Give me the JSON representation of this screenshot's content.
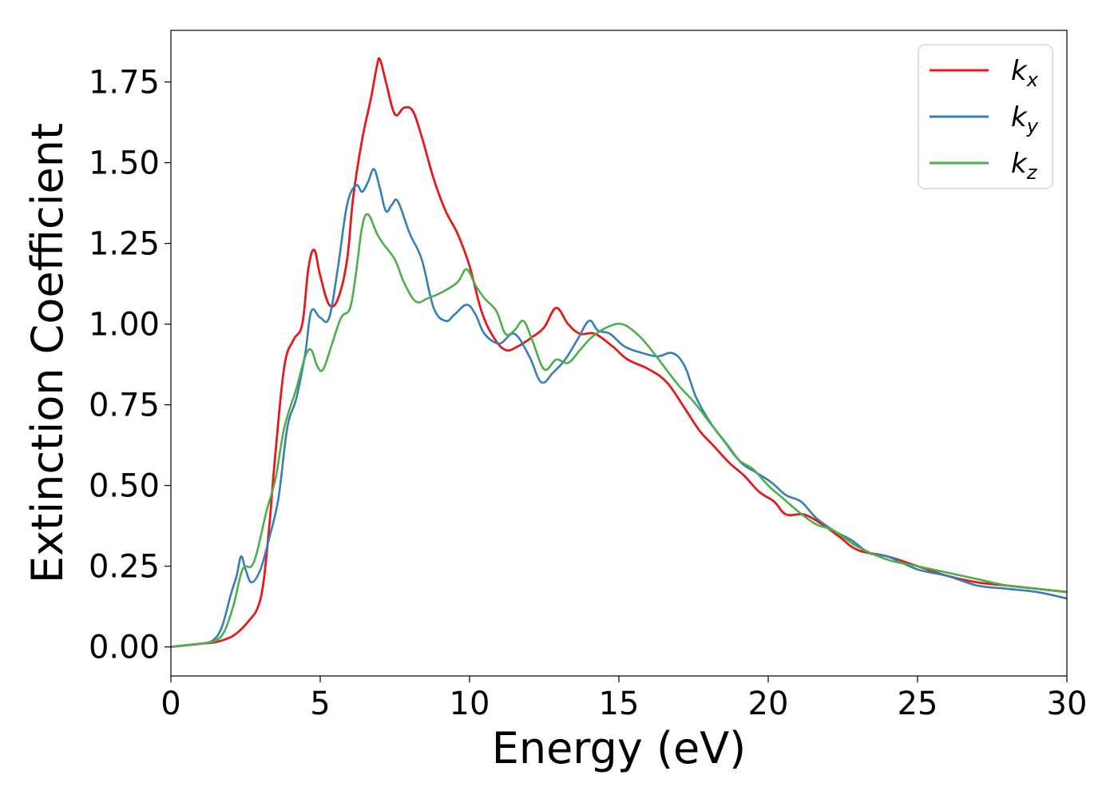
{
  "chart_data": {
    "type": "line",
    "xlabel": "Energy (eV)",
    "ylabel": "Extinction Coefficient",
    "xlim": [
      0,
      30
    ],
    "ylim": [
      -0.09,
      1.91
    ],
    "xticks": [
      0,
      5,
      10,
      15,
      20,
      25,
      30
    ],
    "yticks": [
      0.0,
      0.25,
      0.5,
      0.75,
      1.0,
      1.25,
      1.5,
      1.75
    ],
    "xtick_labels": [
      "0",
      "5",
      "10",
      "15",
      "20",
      "25",
      "30"
    ],
    "ytick_labels": [
      "0.00",
      "0.25",
      "0.50",
      "0.75",
      "1.00",
      "1.25",
      "1.50",
      "1.75"
    ],
    "grid": false,
    "legend_position": "top-right",
    "series": [
      {
        "name": "k_x",
        "legend_base": "k",
        "legend_sub": "x",
        "color": "#e41a1c",
        "points": [
          [
            0,
            0.0
          ],
          [
            0.5,
            0.005
          ],
          [
            1.0,
            0.01
          ],
          [
            1.5,
            0.015
          ],
          [
            2.0,
            0.03
          ],
          [
            2.3,
            0.05
          ],
          [
            2.6,
            0.08
          ],
          [
            2.9,
            0.12
          ],
          [
            3.1,
            0.2
          ],
          [
            3.3,
            0.38
          ],
          [
            3.5,
            0.6
          ],
          [
            3.8,
            0.87
          ],
          [
            4.1,
            0.95
          ],
          [
            4.4,
            1.0
          ],
          [
            4.6,
            1.17
          ],
          [
            4.8,
            1.23
          ],
          [
            5.0,
            1.15
          ],
          [
            5.3,
            1.06
          ],
          [
            5.6,
            1.08
          ],
          [
            5.9,
            1.2
          ],
          [
            6.1,
            1.39
          ],
          [
            6.4,
            1.57
          ],
          [
            6.7,
            1.7
          ],
          [
            6.9,
            1.8
          ],
          [
            7.0,
            1.82
          ],
          [
            7.2,
            1.75
          ],
          [
            7.5,
            1.65
          ],
          [
            7.8,
            1.67
          ],
          [
            8.1,
            1.66
          ],
          [
            8.4,
            1.58
          ],
          [
            8.8,
            1.45
          ],
          [
            9.2,
            1.35
          ],
          [
            9.6,
            1.28
          ],
          [
            10.0,
            1.18
          ],
          [
            10.4,
            1.04
          ],
          [
            10.8,
            0.96
          ],
          [
            11.2,
            0.92
          ],
          [
            11.6,
            0.93
          ],
          [
            12.1,
            0.96
          ],
          [
            12.5,
            0.99
          ],
          [
            12.9,
            1.05
          ],
          [
            13.3,
            1.0
          ],
          [
            13.7,
            0.97
          ],
          [
            14.2,
            0.97
          ],
          [
            14.8,
            0.93
          ],
          [
            15.3,
            0.89
          ],
          [
            16.0,
            0.86
          ],
          [
            16.6,
            0.82
          ],
          [
            17.2,
            0.74
          ],
          [
            17.7,
            0.67
          ],
          [
            18.2,
            0.62
          ],
          [
            18.7,
            0.57
          ],
          [
            19.2,
            0.53
          ],
          [
            19.7,
            0.48
          ],
          [
            20.2,
            0.45
          ],
          [
            20.6,
            0.41
          ],
          [
            21.2,
            0.41
          ],
          [
            21.8,
            0.38
          ],
          [
            22.4,
            0.34
          ],
          [
            23.0,
            0.3
          ],
          [
            24.0,
            0.28
          ],
          [
            25.0,
            0.25
          ],
          [
            26.0,
            0.22
          ],
          [
            27.0,
            0.2
          ],
          [
            28.0,
            0.19
          ],
          [
            29.0,
            0.18
          ],
          [
            30.0,
            0.17
          ]
        ]
      },
      {
        "name": "k_y",
        "legend_base": "k",
        "legend_sub": "y",
        "color": "#377eb8",
        "points": [
          [
            0,
            0.0
          ],
          [
            0.5,
            0.005
          ],
          [
            1.0,
            0.01
          ],
          [
            1.4,
            0.02
          ],
          [
            1.7,
            0.06
          ],
          [
            2.0,
            0.16
          ],
          [
            2.2,
            0.22
          ],
          [
            2.35,
            0.28
          ],
          [
            2.5,
            0.24
          ],
          [
            2.7,
            0.2
          ],
          [
            3.0,
            0.24
          ],
          [
            3.3,
            0.34
          ],
          [
            3.6,
            0.46
          ],
          [
            3.9,
            0.68
          ],
          [
            4.2,
            0.77
          ],
          [
            4.5,
            0.91
          ],
          [
            4.7,
            1.04
          ],
          [
            5.0,
            1.02
          ],
          [
            5.3,
            1.02
          ],
          [
            5.6,
            1.18
          ],
          [
            5.9,
            1.37
          ],
          [
            6.2,
            1.43
          ],
          [
            6.4,
            1.41
          ],
          [
            6.6,
            1.44
          ],
          [
            6.8,
            1.48
          ],
          [
            7.0,
            1.42
          ],
          [
            7.2,
            1.35
          ],
          [
            7.4,
            1.37
          ],
          [
            7.6,
            1.38
          ],
          [
            8.0,
            1.28
          ],
          [
            8.4,
            1.2
          ],
          [
            8.8,
            1.05
          ],
          [
            9.2,
            1.01
          ],
          [
            9.5,
            1.03
          ],
          [
            9.9,
            1.06
          ],
          [
            10.2,
            1.03
          ],
          [
            10.5,
            0.97
          ],
          [
            11.0,
            0.94
          ],
          [
            11.5,
            0.97
          ],
          [
            12.0,
            0.9
          ],
          [
            12.4,
            0.82
          ],
          [
            12.8,
            0.85
          ],
          [
            13.2,
            0.89
          ],
          [
            13.6,
            0.95
          ],
          [
            14.0,
            1.01
          ],
          [
            14.3,
            0.98
          ],
          [
            14.7,
            0.97
          ],
          [
            15.2,
            0.93
          ],
          [
            15.8,
            0.91
          ],
          [
            16.3,
            0.9
          ],
          [
            16.8,
            0.91
          ],
          [
            17.2,
            0.87
          ],
          [
            17.6,
            0.77
          ],
          [
            18.1,
            0.69
          ],
          [
            18.6,
            0.63
          ],
          [
            19.1,
            0.57
          ],
          [
            19.6,
            0.54
          ],
          [
            20.1,
            0.51
          ],
          [
            20.6,
            0.47
          ],
          [
            21.1,
            0.45
          ],
          [
            21.6,
            0.4
          ],
          [
            22.2,
            0.36
          ],
          [
            22.8,
            0.33
          ],
          [
            23.4,
            0.29
          ],
          [
            24.0,
            0.28
          ],
          [
            25.0,
            0.24
          ],
          [
            26.0,
            0.22
          ],
          [
            27.0,
            0.19
          ],
          [
            28.0,
            0.18
          ],
          [
            29.0,
            0.17
          ],
          [
            30.0,
            0.15
          ]
        ]
      },
      {
        "name": "k_z",
        "legend_base": "k",
        "legend_sub": "z",
        "color": "#4daf4a",
        "points": [
          [
            0,
            0.0
          ],
          [
            0.5,
            0.005
          ],
          [
            1.0,
            0.01
          ],
          [
            1.5,
            0.02
          ],
          [
            1.8,
            0.05
          ],
          [
            2.1,
            0.13
          ],
          [
            2.4,
            0.24
          ],
          [
            2.7,
            0.25
          ],
          [
            2.9,
            0.3
          ],
          [
            3.2,
            0.42
          ],
          [
            3.5,
            0.52
          ],
          [
            3.8,
            0.68
          ],
          [
            4.2,
            0.8
          ],
          [
            4.5,
            0.9
          ],
          [
            4.7,
            0.92
          ],
          [
            4.9,
            0.87
          ],
          [
            5.1,
            0.86
          ],
          [
            5.4,
            0.94
          ],
          [
            5.7,
            1.02
          ],
          [
            6.0,
            1.05
          ],
          [
            6.2,
            1.16
          ],
          [
            6.4,
            1.3
          ],
          [
            6.6,
            1.34
          ],
          [
            6.9,
            1.28
          ],
          [
            7.1,
            1.25
          ],
          [
            7.5,
            1.2
          ],
          [
            7.8,
            1.13
          ],
          [
            8.2,
            1.07
          ],
          [
            8.6,
            1.08
          ],
          [
            9.1,
            1.1
          ],
          [
            9.6,
            1.13
          ],
          [
            9.9,
            1.17
          ],
          [
            10.2,
            1.12
          ],
          [
            10.5,
            1.08
          ],
          [
            10.9,
            1.04
          ],
          [
            11.2,
            0.97
          ],
          [
            11.5,
            0.98
          ],
          [
            11.8,
            1.01
          ],
          [
            12.1,
            0.95
          ],
          [
            12.5,
            0.86
          ],
          [
            12.9,
            0.89
          ],
          [
            13.3,
            0.88
          ],
          [
            13.7,
            0.92
          ],
          [
            14.1,
            0.96
          ],
          [
            14.6,
            0.99
          ],
          [
            15.1,
            1.0
          ],
          [
            15.6,
            0.97
          ],
          [
            16.0,
            0.93
          ],
          [
            16.5,
            0.87
          ],
          [
            17.0,
            0.81
          ],
          [
            17.5,
            0.76
          ],
          [
            18.0,
            0.7
          ],
          [
            18.5,
            0.64
          ],
          [
            19.0,
            0.58
          ],
          [
            19.5,
            0.55
          ],
          [
            20.0,
            0.5
          ],
          [
            20.5,
            0.46
          ],
          [
            21.0,
            0.42
          ],
          [
            21.6,
            0.38
          ],
          [
            22.2,
            0.36
          ],
          [
            23.0,
            0.31
          ],
          [
            24.0,
            0.27
          ],
          [
            25.0,
            0.25
          ],
          [
            26.0,
            0.23
          ],
          [
            27.0,
            0.21
          ],
          [
            28.0,
            0.19
          ],
          [
            29.0,
            0.18
          ],
          [
            30.0,
            0.17
          ]
        ]
      }
    ]
  }
}
